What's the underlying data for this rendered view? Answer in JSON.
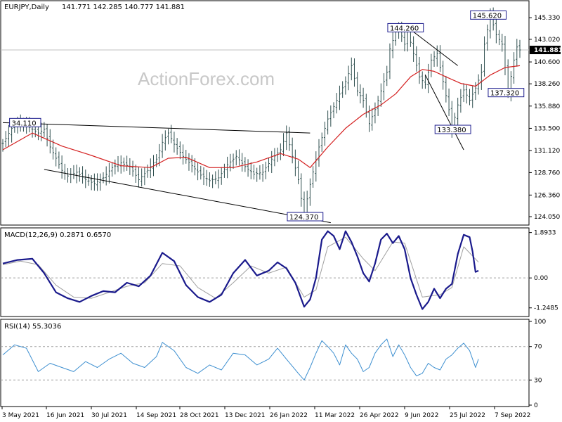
{
  "chart_data": {
    "type": "candlestick",
    "symbol": "EURJPY,Daily",
    "ohlc_text": "141.771 142.285 140.777 141.881",
    "watermark": "ActionForex.com",
    "last_price_label": "141.881",
    "last_price": 141.881,
    "x_labels": [
      "3 May 2021",
      "16 Jun 2021",
      "30 Jul 2021",
      "14 Sep 2021",
      "28 Oct 2021",
      "13 Dec 2021",
      "26 Jan 2022",
      "11 Mar 2022",
      "26 Apr 2022",
      "9 Jun 2022",
      "25 Jul 2022",
      "7 Sep 2022"
    ],
    "price_panel": {
      "ylim": [
        123.3,
        147.0
      ],
      "y_tick_labels": [
        "145.330",
        "143.020",
        "140.600",
        "138.260",
        "135.880",
        "133.500",
        "131.120",
        "128.760",
        "126.360",
        "124.050"
      ],
      "y_tick_values": [
        145.33,
        143.02,
        140.6,
        138.26,
        135.88,
        133.5,
        131.12,
        128.76,
        126.36,
        124.05
      ],
      "close_path": [
        [
          0,
          131.9
        ],
        [
          3,
          133.5
        ],
        [
          6,
          134.1
        ],
        [
          9,
          133.6
        ],
        [
          12,
          133.0
        ],
        [
          14,
          133.4
        ],
        [
          16,
          131.5
        ],
        [
          18,
          130.3
        ],
        [
          20,
          129.0
        ],
        [
          22,
          128.4
        ],
        [
          25,
          128.8
        ],
        [
          28,
          128.0
        ],
        [
          31,
          127.6
        ],
        [
          34,
          128.2
        ],
        [
          37,
          129.3
        ],
        [
          40,
          129.8
        ],
        [
          43,
          129.4
        ],
        [
          46,
          128.0
        ],
        [
          49,
          129.0
        ],
        [
          52,
          130.2
        ],
        [
          54,
          132.0
        ],
        [
          56,
          133.0
        ],
        [
          58,
          131.8
        ],
        [
          61,
          130.5
        ],
        [
          64,
          129.5
        ],
        [
          67,
          128.5
        ],
        [
          70,
          127.9
        ],
        [
          73,
          128.2
        ],
        [
          76,
          129.6
        ],
        [
          79,
          130.5
        ],
        [
          82,
          129.4
        ],
        [
          85,
          128.6
        ],
        [
          88,
          128.8
        ],
        [
          91,
          130.2
        ],
        [
          94,
          131.2
        ],
        [
          96,
          133.0
        ],
        [
          98,
          130.5
        ],
        [
          100,
          128.0
        ],
        [
          101,
          126.0
        ],
        [
          102,
          124.4
        ],
        [
          104,
          127.5
        ],
        [
          107,
          131.5
        ],
        [
          110,
          134.5
        ],
        [
          113,
          136.5
        ],
        [
          116,
          138.5
        ],
        [
          118,
          140.2
        ],
        [
          120,
          137.5
        ],
        [
          122,
          136.5
        ],
        [
          124,
          134.0
        ],
        [
          126,
          135.5
        ],
        [
          128,
          137.5
        ],
        [
          130,
          139.5
        ],
        [
          131,
          142.0
        ],
        [
          133,
          143.8
        ],
        [
          134,
          144.26
        ],
        [
          136,
          142.5
        ],
        [
          137,
          143.9
        ],
        [
          139,
          141.5
        ],
        [
          141,
          139.0
        ],
        [
          143,
          138.2
        ],
        [
          145,
          140.8
        ],
        [
          147,
          141.5
        ],
        [
          149,
          138.5
        ],
        [
          151,
          135.5
        ],
        [
          152,
          133.38
        ],
        [
          154,
          136.0
        ],
        [
          156,
          137.6
        ],
        [
          158,
          136.5
        ],
        [
          160,
          137.8
        ],
        [
          162,
          139.5
        ],
        [
          163,
          142.5
        ],
        [
          165,
          145.62
        ],
        [
          167,
          143.5
        ],
        [
          169,
          142.5
        ],
        [
          170,
          140.0
        ],
        [
          171,
          137.32
        ],
        [
          173,
          140.8
        ],
        [
          174,
          142.2
        ],
        [
          175,
          141.881
        ]
      ],
      "ma_path": [
        [
          0,
          131.2
        ],
        [
          10,
          133.0
        ],
        [
          20,
          131.6
        ],
        [
          30,
          130.6
        ],
        [
          40,
          129.5
        ],
        [
          50,
          129.3
        ],
        [
          56,
          130.3
        ],
        [
          62,
          130.4
        ],
        [
          70,
          129.3
        ],
        [
          78,
          129.3
        ],
        [
          86,
          129.9
        ],
        [
          94,
          130.8
        ],
        [
          100,
          130.2
        ],
        [
          104,
          129.3
        ],
        [
          110,
          131.5
        ],
        [
          116,
          133.5
        ],
        [
          122,
          135.0
        ],
        [
          128,
          136.0
        ],
        [
          133,
          137.2
        ],
        [
          138,
          139.0
        ],
        [
          142,
          139.8
        ],
        [
          146,
          139.6
        ],
        [
          150,
          139.0
        ],
        [
          155,
          138.3
        ],
        [
          160,
          138.0
        ],
        [
          165,
          139.2
        ],
        [
          170,
          140.0
        ],
        [
          175,
          140.2
        ]
      ],
      "trendlines": [
        {
          "x1": 0,
          "y1": 134.11,
          "x2": 104,
          "y2": 133.0
        },
        {
          "x1": 14,
          "y1": 129.1,
          "x2": 111,
          "y2": 123.4
        },
        {
          "x1": 137,
          "y1": 144.3,
          "x2": 154,
          "y2": 140.2
        },
        {
          "x1": 143,
          "y1": 139.2,
          "x2": 156,
          "y2": 131.2
        }
      ],
      "annotations": [
        {
          "label": "34.110",
          "x": 3,
          "y": 134.11
        },
        {
          "label": "124.370",
          "x": 97,
          "y": 124.05
        },
        {
          "label": "144.260",
          "x": 131,
          "y": 144.26
        },
        {
          "label": "145.620",
          "x": 159,
          "y": 145.62
        },
        {
          "label": "137.320",
          "x": 165,
          "y": 137.32
        },
        {
          "label": "133.380",
          "x": 147,
          "y": 133.38
        }
      ]
    },
    "macd_panel": {
      "label": "MACD(12,26,9) 0.2871 0.6570",
      "ylim": [
        -1.55,
        2.0
      ],
      "y_tick_labels": [
        "1.8933",
        "0.00",
        "-1.2485"
      ],
      "y_tick_values": [
        1.8933,
        0.0,
        -1.2485
      ],
      "macd": [
        [
          0,
          0.6
        ],
        [
          5,
          0.75
        ],
        [
          10,
          0.8
        ],
        [
          14,
          0.2
        ],
        [
          18,
          -0.6
        ],
        [
          22,
          -0.85
        ],
        [
          26,
          -1.0
        ],
        [
          30,
          -0.75
        ],
        [
          34,
          -0.55
        ],
        [
          38,
          -0.6
        ],
        [
          42,
          -0.2
        ],
        [
          46,
          -0.35
        ],
        [
          50,
          0.1
        ],
        [
          54,
          1.05
        ],
        [
          58,
          0.7
        ],
        [
          62,
          -0.3
        ],
        [
          66,
          -0.8
        ],
        [
          70,
          -1.0
        ],
        [
          74,
          -0.7
        ],
        [
          78,
          0.2
        ],
        [
          82,
          0.75
        ],
        [
          86,
          0.1
        ],
        [
          90,
          0.3
        ],
        [
          93,
          0.65
        ],
        [
          96,
          0.4
        ],
        [
          99,
          -0.2
        ],
        [
          102,
          -1.2
        ],
        [
          104,
          -0.9
        ],
        [
          106,
          0.0
        ],
        [
          108,
          1.6
        ],
        [
          110,
          1.95
        ],
        [
          112,
          1.75
        ],
        [
          114,
          1.2
        ],
        [
          116,
          1.95
        ],
        [
          118,
          1.5
        ],
        [
          120,
          0.9
        ],
        [
          122,
          0.2
        ],
        [
          124,
          -0.15
        ],
        [
          126,
          0.6
        ],
        [
          128,
          1.6
        ],
        [
          130,
          1.85
        ],
        [
          132,
          1.45
        ],
        [
          134,
          1.75
        ],
        [
          136,
          1.2
        ],
        [
          138,
          0.0
        ],
        [
          140,
          -0.7
        ],
        [
          142,
          -1.3
        ],
        [
          144,
          -1.0
        ],
        [
          146,
          -0.45
        ],
        [
          148,
          -0.85
        ],
        [
          150,
          -0.45
        ],
        [
          152,
          -0.25
        ],
        [
          154,
          1.0
        ],
        [
          156,
          1.8
        ],
        [
          158,
          1.7
        ],
        [
          159,
          1.1
        ],
        [
          160,
          0.25
        ],
        [
          161,
          0.3
        ]
      ],
      "signal": [
        [
          0,
          0.55
        ],
        [
          6,
          0.7
        ],
        [
          12,
          0.55
        ],
        [
          18,
          -0.3
        ],
        [
          24,
          -0.8
        ],
        [
          30,
          -0.85
        ],
        [
          36,
          -0.6
        ],
        [
          42,
          -0.35
        ],
        [
          48,
          -0.2
        ],
        [
          54,
          0.6
        ],
        [
          60,
          0.5
        ],
        [
          66,
          -0.4
        ],
        [
          72,
          -0.85
        ],
        [
          78,
          -0.2
        ],
        [
          84,
          0.5
        ],
        [
          90,
          0.2
        ],
        [
          96,
          0.45
        ],
        [
          102,
          -0.8
        ],
        [
          106,
          -0.5
        ],
        [
          110,
          1.3
        ],
        [
          116,
          1.7
        ],
        [
          122,
          0.8
        ],
        [
          126,
          0.3
        ],
        [
          132,
          1.5
        ],
        [
          136,
          1.45
        ],
        [
          142,
          -0.8
        ],
        [
          148,
          -0.7
        ],
        [
          152,
          -0.4
        ],
        [
          156,
          1.3
        ],
        [
          161,
          0.66
        ]
      ]
    },
    "rsi_panel": {
      "label": "RSI(14) 55.3036",
      "ylim": [
        0,
        100
      ],
      "y_tick_labels": [
        "100",
        "70",
        "30",
        "0"
      ],
      "y_tick_values": [
        100,
        70,
        30,
        0
      ],
      "rsi": [
        [
          0,
          60
        ],
        [
          4,
          72
        ],
        [
          8,
          68
        ],
        [
          12,
          40
        ],
        [
          16,
          50
        ],
        [
          20,
          45
        ],
        [
          24,
          40
        ],
        [
          28,
          52
        ],
        [
          32,
          45
        ],
        [
          36,
          55
        ],
        [
          40,
          62
        ],
        [
          44,
          50
        ],
        [
          48,
          45
        ],
        [
          52,
          58
        ],
        [
          54,
          75
        ],
        [
          58,
          65
        ],
        [
          62,
          45
        ],
        [
          66,
          38
        ],
        [
          70,
          48
        ],
        [
          74,
          42
        ],
        [
          78,
          62
        ],
        [
          82,
          60
        ],
        [
          86,
          48
        ],
        [
          90,
          55
        ],
        [
          93,
          68
        ],
        [
          96,
          55
        ],
        [
          100,
          38
        ],
        [
          102,
          30
        ],
        [
          104,
          45
        ],
        [
          106,
          62
        ],
        [
          108,
          77
        ],
        [
          110,
          70
        ],
        [
          112,
          62
        ],
        [
          114,
          48
        ],
        [
          116,
          72
        ],
        [
          118,
          62
        ],
        [
          120,
          55
        ],
        [
          122,
          40
        ],
        [
          124,
          45
        ],
        [
          126,
          62
        ],
        [
          128,
          72
        ],
        [
          130,
          79
        ],
        [
          132,
          58
        ],
        [
          134,
          72
        ],
        [
          136,
          60
        ],
        [
          138,
          45
        ],
        [
          140,
          35
        ],
        [
          142,
          38
        ],
        [
          144,
          50
        ],
        [
          146,
          45
        ],
        [
          148,
          42
        ],
        [
          150,
          55
        ],
        [
          152,
          60
        ],
        [
          154,
          68
        ],
        [
          156,
          74
        ],
        [
          158,
          65
        ],
        [
          160,
          45
        ],
        [
          161,
          55
        ]
      ]
    }
  }
}
